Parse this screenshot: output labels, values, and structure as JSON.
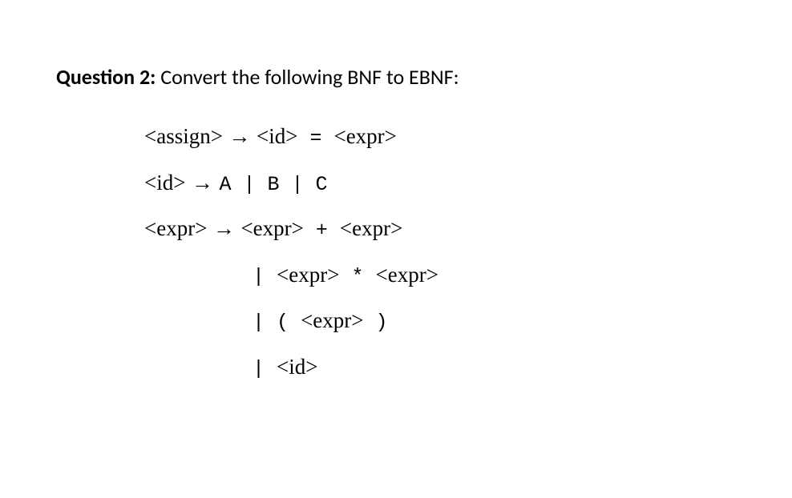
{
  "question": {
    "label": "Question 2:",
    "text": " Convert the following BNF to EBNF:"
  },
  "grammar": {
    "line1": {
      "lhs": "<assign>",
      "arrow": " → ",
      "rhs_id": "<id>",
      "eq": " = ",
      "rhs_expr": "<expr>"
    },
    "line2": {
      "lhs": "<id>",
      "arrow": " → ",
      "rhs": "A | B | C"
    },
    "line3": {
      "lhs": "<expr>",
      "arrow": " → ",
      "rhs_e1": "<expr>",
      "op": " + ",
      "rhs_e2": "<expr>"
    },
    "line4": {
      "indent": "         ",
      "pipe": "| ",
      "e1": "<expr>",
      "op": " * ",
      "e2": "<expr>"
    },
    "line5": {
      "indent": "         ",
      "pipe": "| ",
      "open": "( ",
      "e": "<expr>",
      "close": " )"
    },
    "line6": {
      "indent": "         ",
      "pipe": "| ",
      "id": "<id>"
    }
  },
  "colors": {
    "background": "#ffffff",
    "text": "#000000"
  },
  "fonts": {
    "header": "Calibri, Arial, sans-serif",
    "serif": "Times New Roman, Times, serif",
    "mono": "Courier New, Courier, monospace",
    "header_size": 26,
    "grammar_size": 27,
    "mono_size": 25
  }
}
